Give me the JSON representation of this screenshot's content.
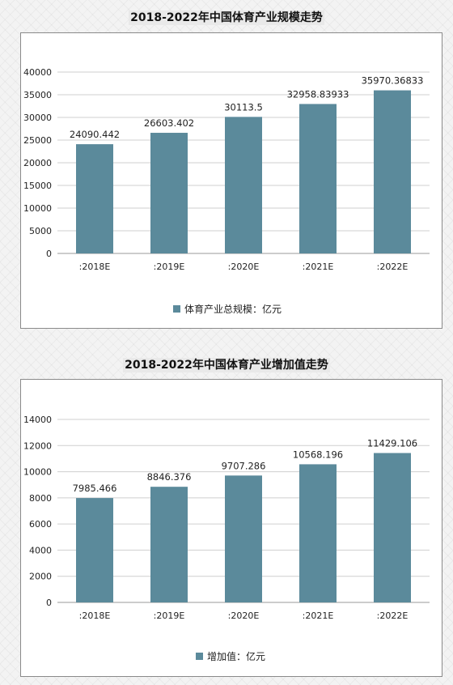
{
  "chart_data": [
    {
      "type": "bar",
      "title": "2018-2022年中国体育产业规模走势",
      "categories": [
        ":2018E",
        ":2019E",
        ":2020E",
        ":2021E",
        ":2022E"
      ],
      "series": [
        {
          "name": "体育产业总规模：亿元",
          "values": [
            24090.442,
            26603.402,
            30113.5,
            32958.83933,
            35970.36833
          ],
          "labels": [
            "24090.442",
            "26603.402",
            "30113.5",
            "32958.83933",
            "35970.36833"
          ]
        }
      ],
      "ylim": [
        0,
        40000
      ],
      "yticks": [
        0,
        5000,
        10000,
        15000,
        20000,
        25000,
        30000,
        35000,
        40000
      ],
      "grid": true,
      "legend": "bottom",
      "color": "#5b8a9b"
    },
    {
      "type": "bar",
      "title": "2018-2022年中国体育产业增加值走势",
      "categories": [
        ":2018E",
        ":2019E",
        ":2020E",
        ":2021E",
        ":2022E"
      ],
      "series": [
        {
          "name": "增加值：亿元",
          "values": [
            7985.466,
            8846.376,
            9707.286,
            10568.196,
            11429.106
          ],
          "labels": [
            "7985.466",
            "8846.376",
            "9707.286",
            "10568.196",
            "11429.106"
          ]
        }
      ],
      "ylim": [
        0,
        14000
      ],
      "yticks": [
        0,
        2000,
        4000,
        6000,
        8000,
        10000,
        12000,
        14000
      ],
      "grid": true,
      "legend": "bottom",
      "color": "#5b8a9b"
    }
  ]
}
